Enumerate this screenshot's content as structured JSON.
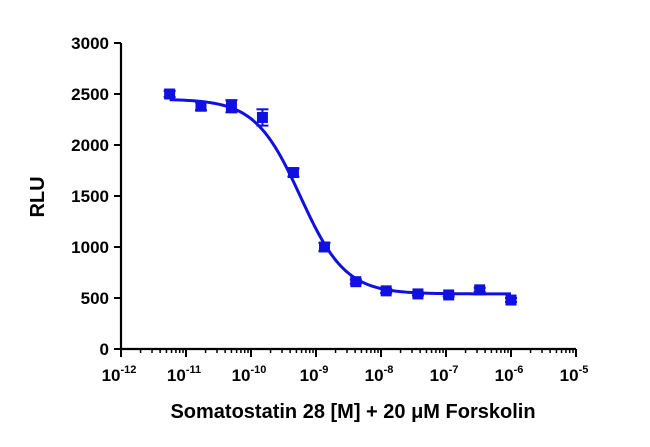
{
  "chart_data": {
    "type": "scatter",
    "xlabel": "Somatostatin 28 [M] + 20 μM Forskolin",
    "ylabel": "RLU",
    "x_scale": "log10",
    "xlim": [
      1e-12,
      1e-05
    ],
    "ylim": [
      0,
      3000
    ],
    "x_tick_labels": [
      {
        "base": "10",
        "exp": "-12"
      },
      {
        "base": "10",
        "exp": "-11"
      },
      {
        "base": "10",
        "exp": "-10"
      },
      {
        "base": "10",
        "exp": "-9"
      },
      {
        "base": "10",
        "exp": "-8"
      },
      {
        "base": "10",
        "exp": "-7"
      },
      {
        "base": "10",
        "exp": "-6"
      },
      {
        "base": "10",
        "exp": "-5"
      }
    ],
    "x_ticks": [
      1e-12,
      1e-11,
      1e-10,
      1e-09,
      1e-08,
      1e-07,
      1e-06,
      1e-05
    ],
    "y_ticks": [
      0,
      500,
      1000,
      1500,
      2000,
      2500,
      3000
    ],
    "y_tick_labels": [
      "0",
      "500",
      "1000",
      "1500",
      "2000",
      "2500",
      "3000"
    ],
    "grid": false,
    "legend": "none",
    "color": "#1010e0",
    "series": [
      {
        "x": [
          5.6e-12,
          1.7e-11,
          5e-11,
          1.5e-10,
          4.5e-10,
          1.35e-09,
          4.1e-09,
          1.2e-08,
          3.7e-08,
          1.1e-07,
          3.3e-07,
          1e-06
        ],
        "y": [
          2500,
          2380,
          2380,
          2270,
          1730,
          1000,
          660,
          570,
          540,
          530,
          580,
          480
        ],
        "err": [
          30,
          40,
          60,
          80,
          40,
          40,
          20,
          20,
          15,
          15,
          20,
          20
        ]
      }
    ],
    "fit": {
      "type": "sigmoidal dose-response",
      "top": 2450,
      "bottom": 540,
      "logEC50": -9.24,
      "hill": -1.25,
      "x_range": [
        5.6e-12,
        1e-06
      ]
    }
  }
}
